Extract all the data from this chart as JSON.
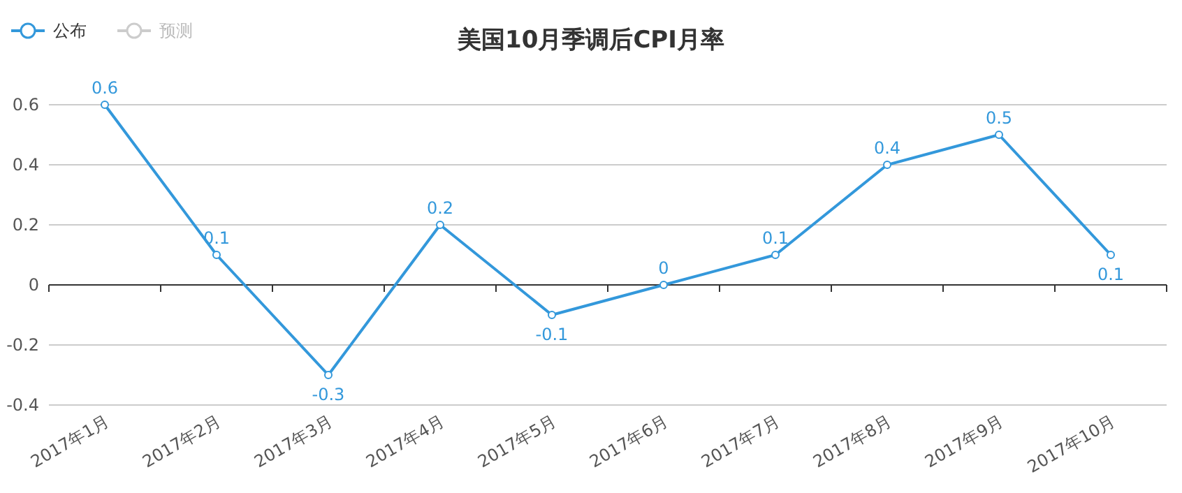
{
  "chart_data": {
    "type": "line",
    "title": "美国10月季调后CPI月率",
    "categories": [
      "2017年1月",
      "2017年2月",
      "2017年3月",
      "2017年4月",
      "2017年5月",
      "2017年6月",
      "2017年7月",
      "2017年8月",
      "2017年9月",
      "2017年10月"
    ],
    "series": [
      {
        "name": "公布",
        "color": "#3398db",
        "values": [
          0.6,
          0.1,
          -0.3,
          0.2,
          -0.1,
          0,
          0.1,
          0.4,
          0.5,
          0.1
        ]
      },
      {
        "name": "预测",
        "color": "#cccccc",
        "values": [
          null,
          null,
          null,
          null,
          null,
          null,
          null,
          null,
          null,
          null
        ]
      }
    ],
    "ylim": [
      -0.4,
      0.6
    ],
    "yticks": [
      -0.4,
      -0.2,
      0,
      0.2,
      0.4,
      0.6
    ],
    "grid": "y",
    "legend": "top left",
    "marker": "circle",
    "data_labels": true
  }
}
